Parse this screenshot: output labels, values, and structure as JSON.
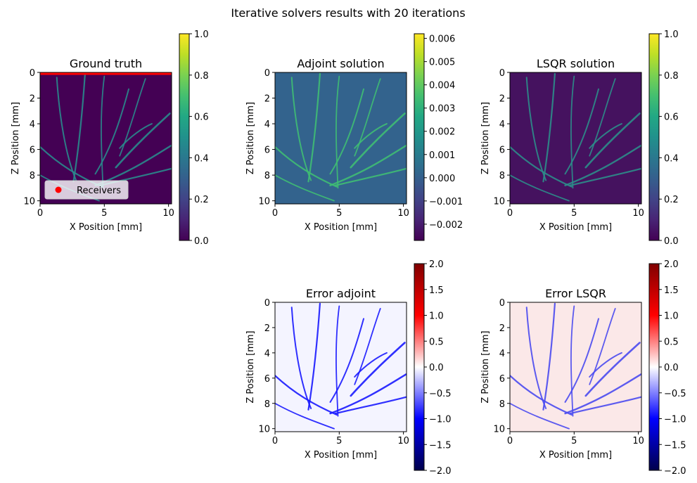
{
  "suptitle": "Iterative solvers results with 20 iterations",
  "colormaps": {
    "viridis": [
      "#440154",
      "#482475",
      "#414487",
      "#355f8d",
      "#2a788e",
      "#21918c",
      "#22a884",
      "#44bf70",
      "#7ad151",
      "#bddf26",
      "#fde725"
    ],
    "seismic": [
      "#00004c",
      "#0000ff",
      "#ffffff",
      "#ff0000",
      "#800000"
    ]
  },
  "chart_data": [
    {
      "type": "heatmap",
      "title": "Ground truth",
      "xlabel": "X Position [mm]",
      "ylabel": "Z Position [mm]",
      "xlim": [
        0,
        10.24
      ],
      "ylim": [
        10.24,
        0
      ],
      "xticks": [
        "0",
        "5",
        "10"
      ],
      "yticks": [
        "0",
        "2",
        "4",
        "6",
        "8",
        "10"
      ],
      "colormap": "viridis",
      "colorbar": {
        "range": [
          0,
          1
        ],
        "ticks": [
          "0.0",
          "0.2",
          "0.4",
          "0.6",
          "0.8",
          "1.0"
        ]
      },
      "background_color": "#440154",
      "vessel_color": "#2a8a8c",
      "receivers": {
        "label": "Receivers",
        "z": 0,
        "x_range": [
          0,
          10.24
        ],
        "color": "#ff0000"
      },
      "legend": {
        "position": "lower-left",
        "entries": [
          "Receivers"
        ]
      }
    },
    {
      "type": "heatmap",
      "title": "Adjoint solution",
      "xlabel": "X Position [mm]",
      "ylabel": "Z Position [mm]",
      "xlim": [
        0,
        10.24
      ],
      "ylim": [
        10.24,
        0
      ],
      "xticks": [
        "0",
        "5",
        "10"
      ],
      "yticks": [
        "0",
        "2",
        "4",
        "6",
        "8",
        "10"
      ],
      "colormap": "viridis",
      "colorbar": {
        "range": [
          -0.0027,
          0.0062
        ],
        "ticks": [
          "−0.002",
          "−0.001",
          "0.000",
          "0.001",
          "0.002",
          "0.003",
          "0.004",
          "0.005",
          "0.006"
        ]
      },
      "background_color": "#33638d",
      "vessel_color": "#3fbc73"
    },
    {
      "type": "heatmap",
      "title": "LSQR solution",
      "xlabel": "X Position [mm]",
      "ylabel": "Z Position [mm]",
      "xlim": [
        0,
        10.24
      ],
      "ylim": [
        10.24,
        0
      ],
      "xticks": [
        "0",
        "5",
        "10"
      ],
      "yticks": [
        "0",
        "2",
        "4",
        "6",
        "8",
        "10"
      ],
      "colormap": "viridis",
      "colorbar": {
        "range": [
          0,
          1
        ],
        "ticks": [
          "0.0",
          "0.2",
          "0.4",
          "0.6",
          "0.8",
          "1.0"
        ]
      },
      "background_color": "#45125f",
      "vessel_color": "#2c8d8a"
    },
    {
      "type": "heatmap",
      "title": "Error adjoint",
      "xlabel": "X Position [mm]",
      "ylabel": "Z Position [mm]",
      "xlim": [
        0,
        10.24
      ],
      "ylim": [
        10.24,
        0
      ],
      "xticks": [
        "0",
        "5",
        "10"
      ],
      "yticks": [
        "0",
        "2",
        "4",
        "6",
        "8",
        "10"
      ],
      "colormap": "seismic",
      "colorbar": {
        "range": [
          -2,
          2
        ],
        "ticks": [
          "−2.0",
          "−1.5",
          "−1.0",
          "−0.5",
          "0.0",
          "0.5",
          "1.0",
          "1.5",
          "2.0"
        ]
      },
      "background_color": "#f4f4ff",
      "vessel_color": "#1a1aff"
    },
    {
      "type": "heatmap",
      "title": "Error LSQR",
      "xlabel": "X Position [mm]",
      "ylabel": "Z Position [mm]",
      "xlim": [
        0,
        10.24
      ],
      "ylim": [
        10.24,
        0
      ],
      "xticks": [
        "0",
        "5",
        "10"
      ],
      "yticks": [
        "0",
        "2",
        "4",
        "6",
        "8",
        "10"
      ],
      "colormap": "seismic",
      "colorbar": {
        "range": [
          -2,
          2
        ],
        "ticks": [
          "−2.0",
          "−1.5",
          "−1.0",
          "−0.5",
          "0.0",
          "0.5",
          "1.0",
          "1.5",
          "2.0"
        ]
      },
      "background_color": "#fbe8e8",
      "vessel_color": "#4a4aef"
    }
  ]
}
